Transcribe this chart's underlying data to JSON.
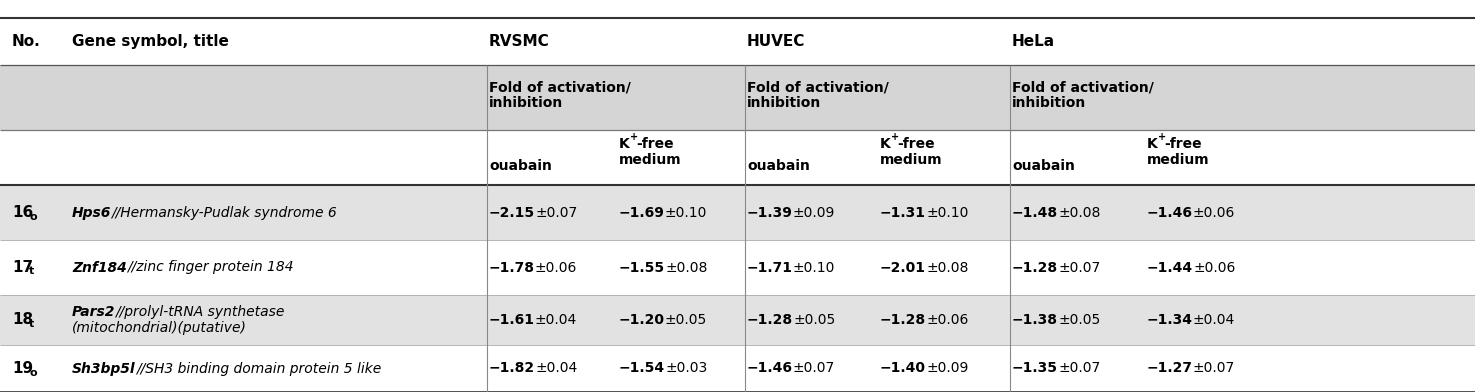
{
  "rows": [
    {
      "no": "16",
      "no_sub": "o",
      "gene_italic": "Hps6",
      "gene_rest": "//Hermansky-Pudlak syndrome 6",
      "gene_line2": "",
      "rvsmc_oua_b": "−2.15",
      "rvsmc_oua_e": "±0.07",
      "rvsmc_kfree_b": "−1.69",
      "rvsmc_kfree_e": "±0.10",
      "huvec_oua_b": "−1.39",
      "huvec_oua_e": "±0.09",
      "huvec_kfree_b": "−1.31",
      "huvec_kfree_e": "±0.10",
      "hela_oua_b": "−1.48",
      "hela_oua_e": "±0.08",
      "hela_kfree_b": "−1.46",
      "hela_kfree_e": "±0.06",
      "shaded": true
    },
    {
      "no": "17",
      "no_sub": "t",
      "gene_italic": "Znf184",
      "gene_rest": "//zinc finger protein 184",
      "gene_line2": "",
      "rvsmc_oua_b": "−1.78",
      "rvsmc_oua_e": "±0.06",
      "rvsmc_kfree_b": "−1.55",
      "rvsmc_kfree_e": "±0.08",
      "huvec_oua_b": "−1.71",
      "huvec_oua_e": "±0.10",
      "huvec_kfree_b": "−2.01",
      "huvec_kfree_e": "±0.08",
      "hela_oua_b": "−1.28",
      "hela_oua_e": "±0.07",
      "hela_kfree_b": "−1.44",
      "hela_kfree_e": "±0.06",
      "shaded": false
    },
    {
      "no": "18",
      "no_sub": "t",
      "gene_italic": "Pars2",
      "gene_rest": "//prolyl-tRNA synthetase",
      "gene_line2": "(mitochondrial)(putative)",
      "rvsmc_oua_b": "−1.61",
      "rvsmc_oua_e": "±0.04",
      "rvsmc_kfree_b": "−1.20",
      "rvsmc_kfree_e": "±0.05",
      "huvec_oua_b": "−1.28",
      "huvec_oua_e": "±0.05",
      "huvec_kfree_b": "−1.28",
      "huvec_kfree_e": "±0.06",
      "hela_oua_b": "−1.38",
      "hela_oua_e": "±0.05",
      "hela_kfree_b": "−1.34",
      "hela_kfree_e": "±0.04",
      "shaded": true
    },
    {
      "no": "19",
      "no_sub": "o",
      "gene_italic": "Sh3bp5l",
      "gene_rest": "//SH3 binding domain protein 5 like",
      "gene_line2": "",
      "rvsmc_oua_b": "−1.82",
      "rvsmc_oua_e": "±0.04",
      "rvsmc_kfree_b": "−1.54",
      "rvsmc_kfree_e": "±0.03",
      "huvec_oua_b": "−1.46",
      "huvec_oua_e": "±0.07",
      "huvec_kfree_b": "−1.40",
      "huvec_kfree_e": "±0.09",
      "hela_oua_b": "−1.35",
      "hela_oua_e": "±0.07",
      "hela_kfree_b": "−1.27",
      "hela_kfree_e": "±0.07",
      "shaded": false
    }
  ],
  "bg_color": "#ffffff",
  "shaded_color": "#e2e2e2",
  "header_shaded_color": "#d5d5d5",
  "fig_width": 14.75,
  "fig_height": 3.92,
  "dpi": 100
}
